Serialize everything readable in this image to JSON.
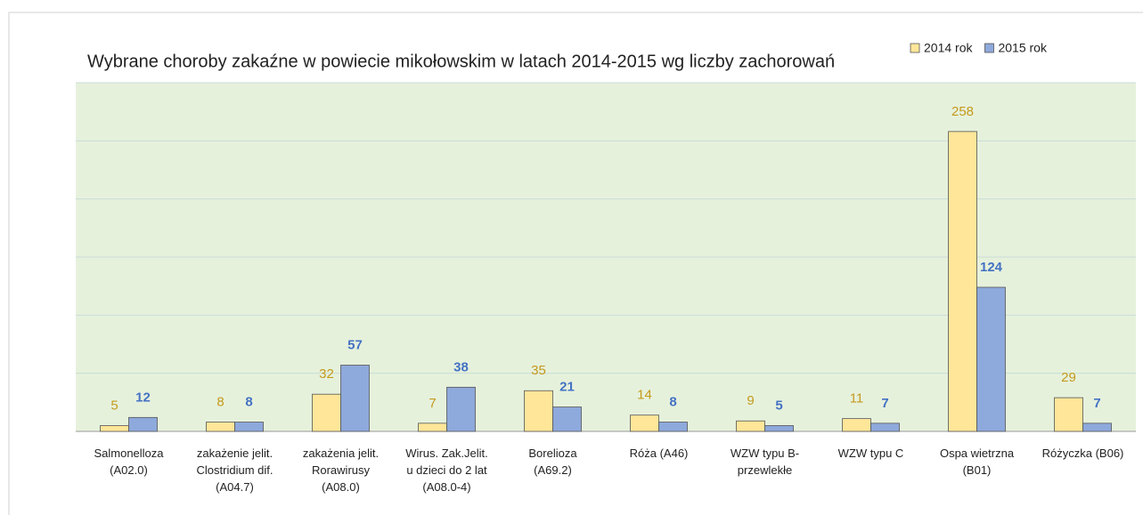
{
  "chart_data": {
    "type": "bar",
    "title": "Wybrane choroby zakaźne w powiecie mikołowskim w latach 2014-2015 wg liczby zachorowań",
    "categories": [
      "Salmonelloza\n(A02.0)",
      "zakażenie jelit.\nClostridium dif.\n(A04.7)",
      "zakażenia jelit.\nRorawirusy\n(A08.0)",
      "Wirus. Zak.Jelit.\nu dzieci do 2 lat\n(A08.0-4)",
      "Borelioza\n(A69.2)",
      "Róża (A46)",
      "WZW typu B-\nprzewlekłe",
      "WZW typu C",
      "Ospa wietrzna\n(B01)",
      "Różyczka (B06)"
    ],
    "series": [
      {
        "name": "2014 rok",
        "color": "#ffe699",
        "label_color": "#c49a1c",
        "values": [
          5,
          8,
          32,
          7,
          35,
          14,
          9,
          11,
          258,
          29
        ]
      },
      {
        "name": "2015 rok",
        "color": "#8ea9db",
        "label_color": "#4472c4",
        "values": [
          12,
          8,
          57,
          38,
          21,
          8,
          5,
          7,
          124,
          7
        ]
      }
    ],
    "ylim": [
      0,
      300
    ],
    "yticks": [
      0,
      50,
      100,
      150,
      200,
      250,
      300
    ],
    "grid": true,
    "legend": "top-right"
  }
}
